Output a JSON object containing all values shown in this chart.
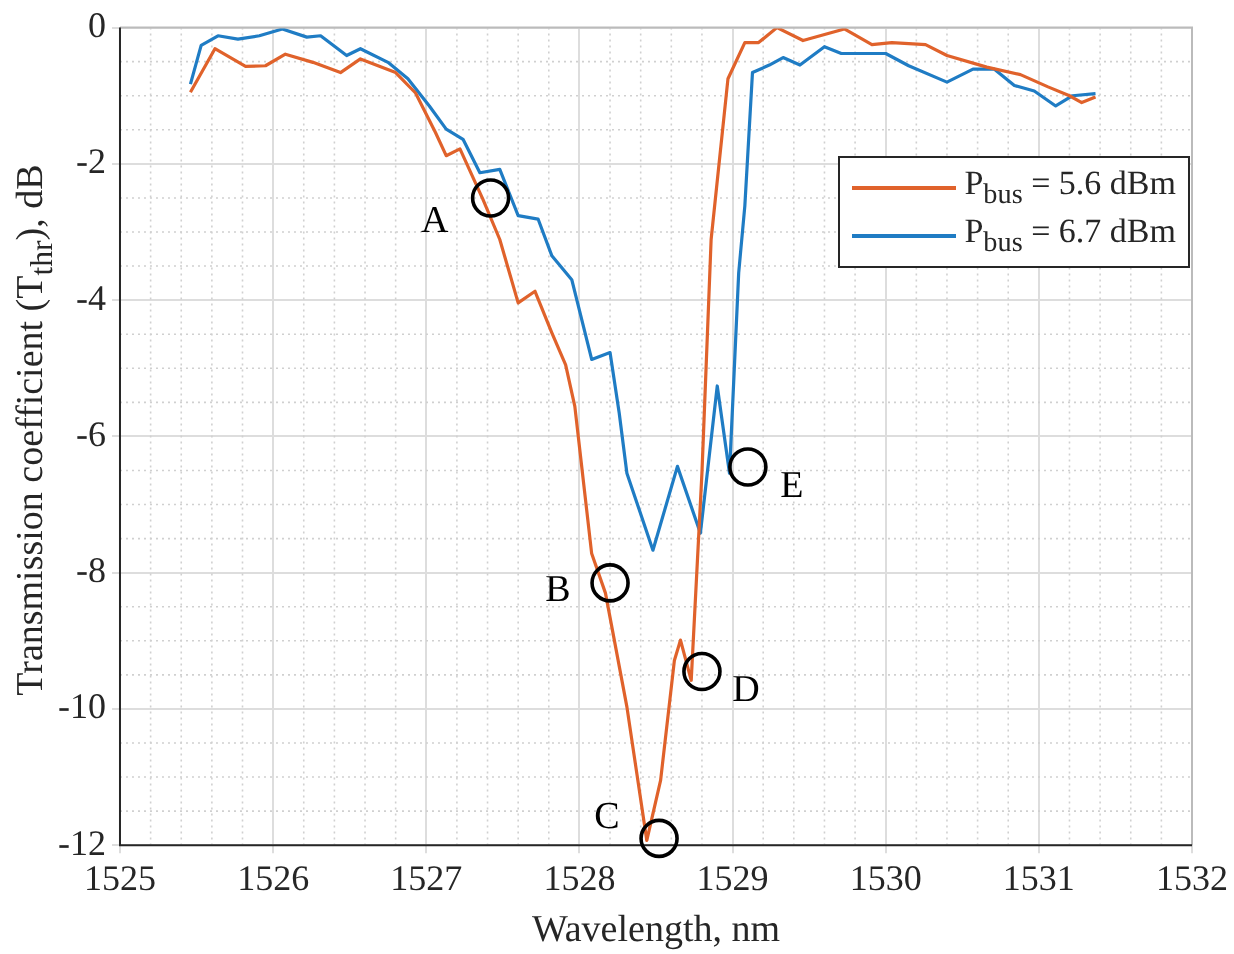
{
  "chart_data": {
    "type": "line",
    "xlabel": "Wavelength, nm",
    "ylabel": "Transmission coefficient (T$_{thr}$), dB",
    "xlim": [
      1525,
      1532
    ],
    "xticks": [
      1525,
      1526,
      1527,
      1528,
      1529,
      1530,
      1531,
      1532
    ],
    "ylim": [
      -12,
      0
    ],
    "yticks": [
      -12,
      -10,
      -8,
      -6,
      -4,
      -2,
      0
    ],
    "grid": true,
    "legend": "right",
    "marker": "none",
    "line_style": "solid",
    "series": [
      {
        "name": "P$_{bus}$ = 5.6 dBm",
        "color": "#e0622b",
        "x": [
          1525.46,
          1525.62,
          1525.82,
          1525.95,
          1526.08,
          1526.26,
          1526.44,
          1526.57,
          1526.8,
          1526.93,
          1527.06,
          1527.13,
          1527.22,
          1527.37,
          1527.48,
          1527.6,
          1527.71,
          1527.82,
          1527.91,
          1527.97,
          1528.08,
          1528.17,
          1528.31,
          1528.44,
          1528.53,
          1528.62,
          1528.66,
          1528.73,
          1528.8,
          1528.86,
          1528.97,
          1529.08,
          1529.17,
          1529.29,
          1529.46,
          1529.73,
          1529.91,
          1530.04,
          1530.26,
          1530.4,
          1530.66,
          1530.88,
          1531.06,
          1531.2,
          1531.28,
          1531.37
        ],
        "values": [
          -0.95,
          -0.31,
          -0.57,
          -0.56,
          -0.39,
          -0.51,
          -0.66,
          -0.46,
          -0.66,
          -0.96,
          -1.54,
          -1.88,
          -1.78,
          -2.52,
          -3.11,
          -4.04,
          -3.87,
          -4.48,
          -4.95,
          -5.56,
          -7.72,
          -8.3,
          -9.97,
          -11.93,
          -11.05,
          -9.29,
          -8.99,
          -9.58,
          -6.54,
          -3.11,
          -0.75,
          -0.22,
          -0.22,
          0,
          -0.19,
          -0.02,
          -0.25,
          -0.22,
          -0.25,
          -0.41,
          -0.58,
          -0.69,
          -0.87,
          -1.0,
          -1.1,
          -1.02
        ]
      },
      {
        "name": "P$_{bus}$ = 6.7 dBm",
        "color": "#1f7cc4",
        "x": [
          1525.46,
          1525.53,
          1525.64,
          1525.77,
          1525.91,
          1526.06,
          1526.22,
          1526.31,
          1526.48,
          1526.57,
          1526.75,
          1526.88,
          1527.02,
          1527.13,
          1527.24,
          1527.35,
          1527.48,
          1527.6,
          1527.73,
          1527.82,
          1527.95,
          1528.08,
          1528.2,
          1528.26,
          1528.31,
          1528.48,
          1528.64,
          1528.79,
          1528.9,
          1528.98,
          1529.04,
          1529.08,
          1529.13,
          1529.24,
          1529.33,
          1529.44,
          1529.6,
          1529.71,
          1530.0,
          1530.15,
          1530.4,
          1530.57,
          1530.71,
          1530.84,
          1530.97,
          1531.11,
          1531.22,
          1531.37
        ],
        "values": [
          -0.83,
          -0.26,
          -0.12,
          -0.17,
          -0.12,
          -0.02,
          -0.14,
          -0.12,
          -0.41,
          -0.31,
          -0.51,
          -0.75,
          -1.15,
          -1.49,
          -1.64,
          -2.13,
          -2.08,
          -2.76,
          -2.81,
          -3.35,
          -3.7,
          -4.87,
          -4.77,
          -5.66,
          -6.54,
          -7.67,
          -6.44,
          -7.42,
          -5.26,
          -6.54,
          -3.6,
          -2.62,
          -0.66,
          -0.55,
          -0.44,
          -0.55,
          -0.28,
          -0.38,
          -0.38,
          -0.56,
          -0.8,
          -0.61,
          -0.61,
          -0.85,
          -0.93,
          -1.15,
          -1.0,
          -0.97
        ]
      }
    ],
    "annotations": [
      {
        "text": "A",
        "x": 1527.42,
        "y": -2.5
      },
      {
        "text": "B",
        "x": 1528.2,
        "y": -8.15
      },
      {
        "text": "C",
        "x": 1528.52,
        "y": -11.9
      },
      {
        "text": "D",
        "x": 1528.8,
        "y": -9.45
      },
      {
        "text": "E",
        "x": 1529.1,
        "y": -6.45
      }
    ]
  }
}
